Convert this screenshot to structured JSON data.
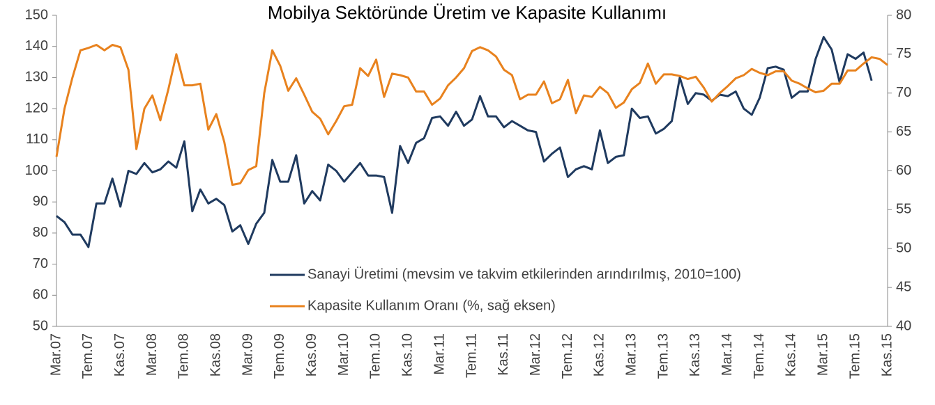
{
  "chart_data": {
    "type": "line",
    "title": "Mobilya Sektöründe Üretim ve Kapasite Kullanımı",
    "categories": [
      "Mar.07",
      null,
      null,
      null,
      "Tem.07",
      null,
      null,
      null,
      "Kas.07",
      null,
      null,
      null,
      "Mar.08",
      null,
      null,
      null,
      "Tem.08",
      null,
      null,
      null,
      "Kas.08",
      null,
      null,
      null,
      "Mar.09",
      null,
      null,
      null,
      "Tem.09",
      null,
      null,
      null,
      "Kas.09",
      null,
      null,
      null,
      "Mar.10",
      null,
      null,
      null,
      "Tem.10",
      null,
      null,
      null,
      "Kas.10",
      null,
      null,
      null,
      "Mar.11",
      null,
      null,
      null,
      "Tem.11",
      null,
      null,
      null,
      "Kas.11",
      null,
      null,
      null,
      "Mar.12",
      null,
      null,
      null,
      "Tem.12",
      null,
      null,
      null,
      "Kas.12",
      null,
      null,
      null,
      "Mar.13",
      null,
      null,
      null,
      "Tem.13",
      null,
      null,
      null,
      "Kas.13",
      null,
      null,
      null,
      "Mar.14",
      null,
      null,
      null,
      "Tem.14",
      null,
      null,
      null,
      "Kas.14",
      null,
      null,
      null,
      "Mar.15",
      null,
      null,
      null,
      "Tem.15",
      null,
      null,
      null,
      "Kas.15"
    ],
    "series": [
      {
        "name": "Sanayi Üretimi (mevsim ve takvim etkilerinden arındırılmış, 2010=100)",
        "color": "#1f3a5f",
        "axis": "y",
        "values": [
          85.5,
          83.5,
          79.5,
          79.5,
          75.5,
          89.5,
          89.5,
          97.5,
          88.5,
          100,
          99,
          102.5,
          99.5,
          100.5,
          103,
          101,
          109.5,
          87,
          94,
          89.5,
          91,
          89,
          80.5,
          82.5,
          76.5,
          83,
          86.5,
          103.5,
          96.5,
          96.5,
          105,
          89.5,
          93.5,
          90.5,
          102,
          100,
          96.5,
          99.5,
          102.5,
          98.5,
          98.5,
          98,
          86.5,
          108,
          102.5,
          109,
          110.5,
          117,
          117.5,
          114.5,
          119,
          114.5,
          116.5,
          124,
          117.5,
          117.5,
          114,
          116,
          114.5,
          113,
          112.5,
          103,
          105.5,
          107.5,
          98,
          100.5,
          101.5,
          100.5,
          113,
          102.5,
          104.5,
          105,
          120,
          117,
          117.5,
          112,
          113.5,
          116,
          130,
          121.5,
          125,
          124.5,
          122.5,
          124.5,
          124,
          125.5,
          120,
          118,
          123.5,
          133,
          133.5,
          132.5,
          123.5,
          125.5,
          125.5,
          136,
          143,
          139,
          128.5,
          137.5,
          136,
          138,
          129,
          null,
          null
        ]
      },
      {
        "name": "Kapasite Kullanım Oranı (%, sağ eksen)",
        "color": "#e8821e",
        "axis": "y2",
        "values": [
          61.8,
          68,
          72,
          75.5,
          75.8,
          76.2,
          75.5,
          76.2,
          75.9,
          73,
          62.8,
          68,
          69.7,
          66.5,
          70.5,
          75,
          71,
          71,
          71.2,
          65.3,
          67.3,
          63.7,
          58.2,
          58.4,
          60.1,
          60.6,
          70,
          75.5,
          73.5,
          70.3,
          71.9,
          69.8,
          67.6,
          66.7,
          64.7,
          66.4,
          68.3,
          68.5,
          73.2,
          72.2,
          74.3,
          69.5,
          72.5,
          72.3,
          72,
          70.2,
          70.2,
          68.5,
          69.3,
          71,
          72,
          73.2,
          75.4,
          75.9,
          75.5,
          74.7,
          73,
          72.3,
          69.2,
          69.8,
          69.8,
          71.5,
          68.7,
          69.2,
          71.7,
          67.4,
          69.7,
          69.5,
          70.8,
          70,
          68.1,
          68.8,
          70.5,
          71.3,
          73.8,
          71.2,
          72.4,
          72.4,
          72.2,
          71.8,
          72.1,
          70.7,
          68.9,
          70,
          70.9,
          71.9,
          72.3,
          73.1,
          72.6,
          72.3,
          72.8,
          72.8,
          71.6,
          71.2,
          70.6,
          70.1,
          70.3,
          71.2,
          71.2,
          72.9,
          72.9,
          73.8,
          74.6,
          74.4,
          73.6
        ]
      }
    ],
    "ylim": [
      50,
      150
    ],
    "yticks": [
      50,
      60,
      70,
      80,
      90,
      100,
      110,
      120,
      130,
      140,
      150
    ],
    "y2lim": [
      40,
      80
    ],
    "y2ticks": [
      40,
      45,
      50,
      55,
      60,
      65,
      70,
      75,
      80
    ],
    "legend": "lower right"
  }
}
